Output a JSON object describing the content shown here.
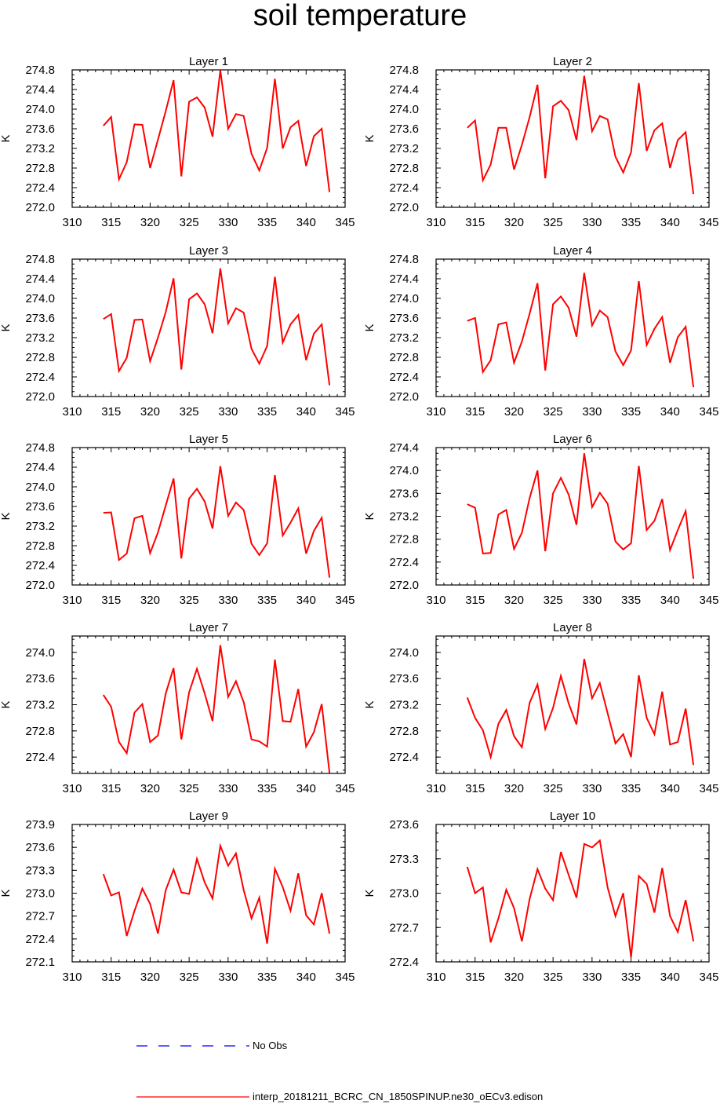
{
  "title": "soil temperature",
  "chart_data": [
    {
      "type": "line",
      "title": "Layer 1",
      "ylabel": "K",
      "xlim": [
        310,
        345
      ],
      "ylim": [
        272.0,
        274.8
      ],
      "xticks": [
        310,
        315,
        320,
        325,
        330,
        335,
        340,
        345
      ],
      "yticks": [
        "272.0",
        "272.4",
        "272.8",
        "273.2",
        "273.6",
        "274.0",
        "274.4",
        "274.8"
      ],
      "series": [
        {
          "name": "interp_20181211_BCRC_CN_1850SPINUP.ne30_oECv3.edison",
          "x": [
            314,
            315,
            316,
            317,
            318,
            319,
            320,
            321,
            322,
            323,
            324,
            325,
            326,
            327,
            328,
            329,
            330,
            331,
            332,
            333,
            334,
            335,
            336,
            337,
            338,
            339,
            340,
            341,
            342,
            343
          ],
          "values": [
            273.66,
            273.84,
            272.57,
            272.92,
            273.69,
            273.68,
            272.8,
            273.38,
            273.96,
            274.59,
            272.63,
            274.15,
            274.24,
            274.03,
            273.44,
            274.79,
            273.6,
            273.9,
            273.86,
            273.09,
            272.75,
            273.21,
            274.62,
            273.2,
            273.63,
            273.76,
            272.84,
            273.45,
            273.6,
            272.31
          ]
        }
      ]
    },
    {
      "type": "line",
      "title": "Layer 2",
      "ylabel": "K",
      "xlim": [
        310,
        345
      ],
      "ylim": [
        272.0,
        274.8
      ],
      "xticks": [
        310,
        315,
        320,
        325,
        330,
        335,
        340,
        345
      ],
      "yticks": [
        "272.0",
        "272.4",
        "272.8",
        "273.2",
        "273.6",
        "274.0",
        "274.4",
        "274.8"
      ],
      "series": [
        {
          "name": "interp_20181211_BCRC_CN_1850SPINUP.ne30_oECv3.edison",
          "x": [
            314,
            315,
            316,
            317,
            318,
            319,
            320,
            321,
            322,
            323,
            324,
            325,
            326,
            327,
            328,
            329,
            330,
            331,
            332,
            333,
            334,
            335,
            336,
            337,
            338,
            339,
            340,
            341,
            342,
            343
          ],
          "values": [
            273.62,
            273.77,
            272.55,
            272.87,
            273.62,
            273.62,
            272.77,
            273.27,
            273.84,
            274.5,
            272.59,
            274.06,
            274.17,
            273.98,
            273.37,
            274.68,
            273.55,
            273.86,
            273.79,
            273.03,
            272.71,
            273.12,
            274.53,
            273.15,
            273.57,
            273.71,
            272.8,
            273.37,
            273.53,
            272.27
          ]
        }
      ]
    },
    {
      "type": "line",
      "title": "Layer 3",
      "ylabel": "K",
      "xlim": [
        310,
        345
      ],
      "ylim": [
        272.0,
        274.8
      ],
      "xticks": [
        310,
        315,
        320,
        325,
        330,
        335,
        340,
        345
      ],
      "yticks": [
        "272.0",
        "272.4",
        "272.8",
        "273.2",
        "273.6",
        "274.0",
        "274.4",
        "274.8"
      ],
      "series": [
        {
          "name": "interp_20181211_BCRC_CN_1850SPINUP.ne30_oECv3.edison",
          "x": [
            314,
            315,
            316,
            317,
            318,
            319,
            320,
            321,
            322,
            323,
            324,
            325,
            326,
            327,
            328,
            329,
            330,
            331,
            332,
            333,
            334,
            335,
            336,
            337,
            338,
            339,
            340,
            341,
            342,
            343
          ],
          "values": [
            273.58,
            273.68,
            272.52,
            272.79,
            273.56,
            273.57,
            272.72,
            273.2,
            273.72,
            274.41,
            272.55,
            273.98,
            274.1,
            273.88,
            273.29,
            274.61,
            273.49,
            273.8,
            273.71,
            272.97,
            272.67,
            273.03,
            274.44,
            273.1,
            273.47,
            273.66,
            272.74,
            273.28,
            273.47,
            272.23
          ]
        }
      ]
    },
    {
      "type": "line",
      "title": "Layer 4",
      "ylabel": "K",
      "xlim": [
        310,
        345
      ],
      "ylim": [
        272.0,
        274.8
      ],
      "xticks": [
        310,
        315,
        320,
        325,
        330,
        335,
        340,
        345
      ],
      "yticks": [
        "272.0",
        "272.4",
        "272.8",
        "273.2",
        "273.6",
        "274.0",
        "274.4",
        "274.8"
      ],
      "series": [
        {
          "name": "interp_20181211_BCRC_CN_1850SPINUP.ne30_oECv3.edison",
          "x": [
            314,
            315,
            316,
            317,
            318,
            319,
            320,
            321,
            322,
            323,
            324,
            325,
            326,
            327,
            328,
            329,
            330,
            331,
            332,
            333,
            334,
            335,
            336,
            337,
            338,
            339,
            340,
            341,
            342,
            343
          ],
          "values": [
            273.54,
            273.6,
            272.5,
            272.74,
            273.47,
            273.51,
            272.69,
            273.12,
            273.69,
            274.31,
            272.53,
            273.88,
            274.04,
            273.81,
            273.22,
            274.52,
            273.45,
            273.75,
            273.62,
            272.92,
            272.64,
            272.94,
            274.35,
            273.05,
            273.38,
            273.62,
            272.69,
            273.21,
            273.42,
            272.19
          ]
        }
      ]
    },
    {
      "type": "line",
      "title": "Layer 5",
      "ylabel": "K",
      "xlim": [
        310,
        345
      ],
      "ylim": [
        272.0,
        274.8
      ],
      "xticks": [
        310,
        315,
        320,
        325,
        330,
        335,
        340,
        345
      ],
      "yticks": [
        "272.0",
        "272.4",
        "272.8",
        "273.2",
        "273.6",
        "274.0",
        "274.4",
        "274.8"
      ],
      "series": [
        {
          "name": "interp_20181211_BCRC_CN_1850SPINUP.ne30_oECv3.edison",
          "x": [
            314,
            315,
            316,
            317,
            318,
            319,
            320,
            321,
            322,
            323,
            324,
            325,
            326,
            327,
            328,
            329,
            330,
            331,
            332,
            333,
            334,
            335,
            336,
            337,
            338,
            339,
            340,
            341,
            342,
            343
          ],
          "values": [
            273.47,
            273.48,
            272.51,
            272.64,
            273.36,
            273.41,
            272.65,
            273.07,
            273.62,
            274.17,
            272.54,
            273.76,
            273.96,
            273.7,
            273.15,
            274.42,
            273.41,
            273.68,
            273.53,
            272.84,
            272.61,
            272.85,
            274.24,
            273.01,
            273.27,
            273.56,
            272.64,
            273.1,
            273.37,
            272.15
          ]
        }
      ]
    },
    {
      "type": "line",
      "title": "Layer 6",
      "ylabel": "K",
      "xlim": [
        310,
        345
      ],
      "ylim": [
        272.0,
        274.4
      ],
      "xticks": [
        310,
        315,
        320,
        325,
        330,
        335,
        340,
        345
      ],
      "yticks": [
        "272.0",
        "272.4",
        "272.8",
        "273.2",
        "273.6",
        "274.0",
        "274.4"
      ],
      "series": [
        {
          "name": "interp_20181211_BCRC_CN_1850SPINUP.ne30_oECv3.edison",
          "x": [
            314,
            315,
            316,
            317,
            318,
            319,
            320,
            321,
            322,
            323,
            324,
            325,
            326,
            327,
            328,
            329,
            330,
            331,
            332,
            333,
            334,
            335,
            336,
            337,
            338,
            339,
            340,
            341,
            342,
            343
          ],
          "values": [
            273.41,
            273.35,
            272.55,
            272.56,
            273.23,
            273.31,
            272.63,
            272.91,
            273.52,
            274.0,
            272.59,
            273.6,
            273.87,
            273.58,
            273.05,
            274.3,
            273.36,
            273.61,
            273.42,
            272.76,
            272.62,
            272.73,
            274.08,
            272.96,
            273.12,
            273.5,
            272.61,
            272.96,
            273.29,
            272.11
          ]
        }
      ]
    },
    {
      "type": "line",
      "title": "Layer 7",
      "ylabel": "K",
      "xlim": [
        310,
        345
      ],
      "ylim": [
        272.15,
        274.25
      ],
      "xticks": [
        310,
        315,
        320,
        325,
        330,
        335,
        340,
        345
      ],
      "yticks": [
        "272.4",
        "272.8",
        "273.2",
        "273.6",
        "274.0"
      ],
      "series": [
        {
          "name": "interp_20181211_BCRC_CN_1850SPINUP.ne30_oECv3.edison",
          "x": [
            314,
            315,
            316,
            317,
            318,
            319,
            320,
            321,
            322,
            323,
            324,
            325,
            326,
            327,
            328,
            329,
            330,
            331,
            332,
            333,
            334,
            335,
            336,
            337,
            338,
            339,
            340,
            341,
            342,
            343
          ],
          "values": [
            273.35,
            273.17,
            272.63,
            272.46,
            273.08,
            273.21,
            272.63,
            272.73,
            273.37,
            273.76,
            272.67,
            273.39,
            273.75,
            273.37,
            272.95,
            274.11,
            273.32,
            273.56,
            273.24,
            272.67,
            272.64,
            272.56,
            273.89,
            272.95,
            272.94,
            273.44,
            272.56,
            272.78,
            273.21,
            272.16
          ]
        }
      ]
    },
    {
      "type": "line",
      "title": "Layer 8",
      "ylabel": "K",
      "xlim": [
        310,
        345
      ],
      "ylim": [
        272.15,
        274.25
      ],
      "xticks": [
        310,
        315,
        320,
        325,
        330,
        335,
        340,
        345
      ],
      "yticks": [
        "272.4",
        "272.8",
        "273.2",
        "273.6",
        "274.0"
      ],
      "series": [
        {
          "name": "interp_20181211_BCRC_CN_1850SPINUP.ne30_oECv3.edison",
          "x": [
            314,
            315,
            316,
            317,
            318,
            319,
            320,
            321,
            322,
            323,
            324,
            325,
            326,
            327,
            328,
            329,
            330,
            331,
            332,
            333,
            334,
            335,
            336,
            337,
            338,
            339,
            340,
            341,
            342,
            343
          ],
          "values": [
            273.31,
            273.0,
            272.81,
            272.4,
            272.91,
            273.12,
            272.72,
            272.55,
            273.23,
            273.51,
            272.83,
            273.15,
            273.64,
            273.22,
            272.9,
            273.9,
            273.3,
            273.53,
            273.07,
            272.61,
            272.75,
            272.4,
            273.65,
            273.0,
            272.75,
            273.4,
            272.59,
            272.63,
            273.14,
            272.28
          ]
        }
      ]
    },
    {
      "type": "line",
      "title": "Layer 9",
      "ylabel": "K",
      "xlim": [
        310,
        345
      ],
      "ylim": [
        272.1,
        273.9
      ],
      "xticks": [
        310,
        315,
        320,
        325,
        330,
        335,
        340,
        345
      ],
      "yticks": [
        "272.1",
        "272.4",
        "272.7",
        "273.0",
        "273.3",
        "273.6",
        "273.9"
      ],
      "series": [
        {
          "name": "interp_20181211_BCRC_CN_1850SPINUP.ne30_oECv3.edison",
          "x": [
            314,
            315,
            316,
            317,
            318,
            319,
            320,
            321,
            322,
            323,
            324,
            325,
            326,
            327,
            328,
            329,
            330,
            331,
            332,
            333,
            334,
            335,
            336,
            337,
            338,
            339,
            340,
            341,
            342,
            343
          ],
          "values": [
            273.25,
            272.97,
            273.01,
            272.44,
            272.77,
            273.06,
            272.86,
            272.47,
            273.04,
            273.31,
            273.01,
            272.99,
            273.45,
            273.14,
            272.93,
            273.62,
            273.36,
            273.52,
            273.04,
            272.67,
            272.94,
            272.34,
            273.32,
            273.08,
            272.77,
            273.26,
            272.71,
            272.59,
            273.0,
            272.47
          ]
        }
      ]
    },
    {
      "type": "line",
      "title": "Layer 10",
      "ylabel": "K",
      "xlim": [
        310,
        345
      ],
      "ylim": [
        272.4,
        273.6
      ],
      "xticks": [
        310,
        315,
        320,
        325,
        330,
        335,
        340,
        345
      ],
      "yticks": [
        "272.4",
        "272.7",
        "273.0",
        "273.3",
        "273.6"
      ],
      "series": [
        {
          "name": "interp_20181211_BCRC_CN_1850SPINUP.ne30_oECv3.edison",
          "x": [
            314,
            315,
            316,
            317,
            318,
            319,
            320,
            321,
            322,
            323,
            324,
            325,
            326,
            327,
            328,
            329,
            330,
            331,
            332,
            333,
            334,
            335,
            336,
            337,
            338,
            339,
            340,
            341,
            342,
            343
          ],
          "values": [
            273.23,
            273.0,
            273.05,
            272.57,
            272.78,
            273.03,
            272.87,
            272.58,
            272.95,
            273.21,
            273.04,
            272.94,
            273.36,
            273.16,
            272.96,
            273.43,
            273.4,
            273.46,
            273.05,
            272.8,
            273.0,
            272.44,
            273.15,
            273.08,
            272.83,
            273.22,
            272.8,
            272.66,
            272.94,
            272.58
          ]
        }
      ]
    }
  ],
  "legend": {
    "obs_label": "No Obs",
    "model_label": "interp_20181211_BCRC_CN_1850SPINUP.ne30_oECv3.edison",
    "obs_color": "#0000ff",
    "model_color": "#ff0000"
  }
}
